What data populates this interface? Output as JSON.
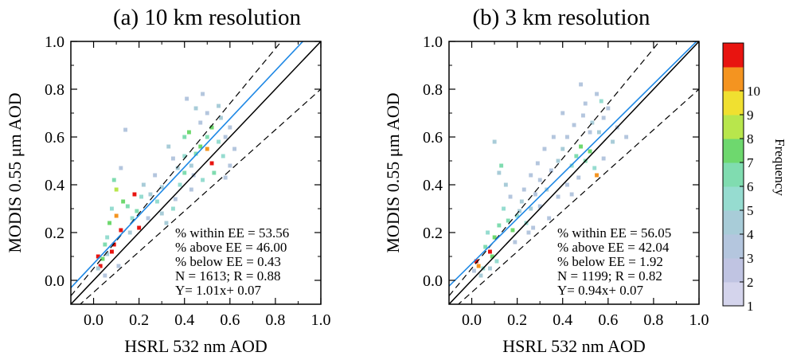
{
  "chart_data": [
    {
      "type": "heatmap",
      "title": "(a) 10 km resolution",
      "xlabel": "HSRL 532 nm AOD",
      "ylabel": "MODIS 0.55 μm AOD",
      "xlim": [
        -0.1,
        1.0
      ],
      "ylim": [
        -0.1,
        1.0
      ],
      "xticks": [
        "0.0",
        "0.2",
        "0.4",
        "0.6",
        "0.8",
        "1.0"
      ],
      "yticks": [
        "0.0",
        "0.2",
        "0.4",
        "0.6",
        "0.8",
        "1.0"
      ],
      "reference_lines": {
        "one_to_one": {
          "slope": 1.0,
          "intercept": 0.0
        },
        "ee_envelope_upper": {
          "slope": 1.15,
          "intercept": 0.05
        },
        "ee_envelope_lower": {
          "slope": 0.85,
          "intercept": -0.05
        },
        "regression": {
          "slope": 1.01,
          "intercept": 0.07
        }
      },
      "stats_lines": [
        "% within EE =  53.56",
        "% above EE =  46.00",
        "% below EE =   0.43",
        "N =   1613; R =  0.88",
        "Y=  1.01x+  0.07"
      ],
      "cells": [
        [
          0.02,
          0.1,
          10
        ],
        [
          0.03,
          0.06,
          10
        ],
        [
          0.08,
          0.12,
          10
        ],
        [
          0.09,
          0.15,
          10
        ],
        [
          0.1,
          0.27,
          9
        ],
        [
          0.12,
          0.21,
          10
        ],
        [
          0.18,
          0.36,
          10
        ],
        [
          0.2,
          0.22,
          10
        ],
        [
          0.52,
          0.49,
          10
        ],
        [
          0.5,
          0.55,
          9
        ],
        [
          0.04,
          0.09,
          6
        ],
        [
          0.05,
          0.15,
          5
        ],
        [
          0.06,
          0.18,
          4
        ],
        [
          0.07,
          0.24,
          6
        ],
        [
          0.08,
          0.3,
          4
        ],
        [
          0.09,
          0.42,
          5
        ],
        [
          0.1,
          0.38,
          7
        ],
        [
          0.13,
          0.33,
          6
        ],
        [
          0.15,
          0.31,
          5
        ],
        [
          0.17,
          0.26,
          4
        ],
        [
          0.19,
          0.29,
          5
        ],
        [
          0.21,
          0.35,
          4
        ],
        [
          0.22,
          0.4,
          3
        ],
        [
          0.25,
          0.36,
          3
        ],
        [
          0.28,
          0.33,
          4
        ],
        [
          0.3,
          0.28,
          3
        ],
        [
          0.32,
          0.24,
          3
        ],
        [
          0.35,
          0.3,
          4
        ],
        [
          0.38,
          0.4,
          4
        ],
        [
          0.4,
          0.45,
          5
        ],
        [
          0.4,
          0.52,
          4
        ],
        [
          0.4,
          0.6,
          5
        ],
        [
          0.42,
          0.62,
          6
        ],
        [
          0.43,
          0.48,
          3
        ],
        [
          0.45,
          0.53,
          5
        ],
        [
          0.47,
          0.56,
          6
        ],
        [
          0.48,
          0.42,
          4
        ],
        [
          0.5,
          0.6,
          5
        ],
        [
          0.52,
          0.64,
          6
        ],
        [
          0.53,
          0.45,
          5
        ],
        [
          0.55,
          0.58,
          4
        ],
        [
          0.56,
          0.68,
          3
        ],
        [
          0.57,
          0.52,
          4
        ],
        [
          0.45,
          0.72,
          3
        ],
        [
          0.48,
          0.78,
          2
        ],
        [
          0.5,
          0.7,
          2
        ],
        [
          0.55,
          0.73,
          3
        ],
        [
          0.58,
          0.6,
          2
        ],
        [
          0.6,
          0.64,
          2
        ],
        [
          0.33,
          0.56,
          3
        ],
        [
          0.35,
          0.51,
          2
        ],
        [
          0.37,
          0.47,
          3
        ],
        [
          0.44,
          0.44,
          2
        ],
        [
          0.6,
          0.48,
          2
        ],
        [
          0.62,
          0.55,
          2
        ],
        [
          0.47,
          0.66,
          2
        ],
        [
          0.41,
          0.76,
          2
        ],
        [
          0.14,
          0.63,
          2
        ],
        [
          0.12,
          0.47,
          2
        ],
        [
          0.05,
          0.02,
          2
        ],
        [
          0.02,
          0.05,
          3
        ],
        [
          0.06,
          0.11,
          3
        ],
        [
          0.11,
          0.06,
          2
        ],
        [
          0.16,
          0.2,
          3
        ],
        [
          0.24,
          0.26,
          2
        ],
        [
          0.27,
          0.44,
          2
        ],
        [
          0.3,
          0.39,
          3
        ],
        [
          0.36,
          0.34,
          2
        ],
        [
          0.43,
          0.38,
          2
        ],
        [
          0.58,
          0.43,
          2
        ]
      ]
    },
    {
      "type": "heatmap",
      "title": "(b) 3 km resolution",
      "xlabel": "HSRL 532 nm AOD",
      "ylabel": "MODIS 0.55 μm AOD",
      "xlim": [
        -0.1,
        1.0
      ],
      "ylim": [
        -0.1,
        1.0
      ],
      "xticks": [
        "0.0",
        "0.2",
        "0.4",
        "0.6",
        "0.8",
        "1.0"
      ],
      "yticks": [
        "0.0",
        "0.2",
        "0.4",
        "0.6",
        "0.8",
        "1.0"
      ],
      "reference_lines": {
        "one_to_one": {
          "slope": 1.0,
          "intercept": 0.0
        },
        "ee_envelope_upper": {
          "slope": 1.15,
          "intercept": 0.05
        },
        "ee_envelope_lower": {
          "slope": 0.85,
          "intercept": -0.05
        },
        "regression": {
          "slope": 0.94,
          "intercept": 0.07
        }
      },
      "stats_lines": [
        "% within EE =  56.05",
        "% above EE =  42.04",
        "% below EE =   1.92",
        "N =   1199; R =  0.82",
        "Y=  0.94x+  0.07"
      ],
      "cells": [
        [
          0.02,
          0.08,
          10
        ],
        [
          0.03,
          0.06,
          9
        ],
        [
          0.08,
          0.12,
          10
        ],
        [
          0.09,
          0.1,
          6
        ],
        [
          0.05,
          0.05,
          4
        ],
        [
          0.06,
          0.14,
          5
        ],
        [
          0.07,
          0.2,
          4
        ],
        [
          0.1,
          0.18,
          6
        ],
        [
          0.12,
          0.23,
          5
        ],
        [
          0.14,
          0.3,
          4
        ],
        [
          0.15,
          0.4,
          3
        ],
        [
          0.16,
          0.25,
          5
        ],
        [
          0.18,
          0.21,
          6
        ],
        [
          0.2,
          0.27,
          4
        ],
        [
          0.22,
          0.33,
          3
        ],
        [
          0.24,
          0.24,
          4
        ],
        [
          0.26,
          0.3,
          3
        ],
        [
          0.28,
          0.36,
          2
        ],
        [
          0.3,
          0.42,
          2
        ],
        [
          0.33,
          0.38,
          3
        ],
        [
          0.35,
          0.46,
          2
        ],
        [
          0.38,
          0.5,
          3
        ],
        [
          0.4,
          0.55,
          3
        ],
        [
          0.42,
          0.6,
          2
        ],
        [
          0.44,
          0.48,
          4
        ],
        [
          0.46,
          0.52,
          5
        ],
        [
          0.48,
          0.56,
          6
        ],
        [
          0.5,
          0.5,
          5
        ],
        [
          0.52,
          0.54,
          6
        ],
        [
          0.54,
          0.47,
          4
        ],
        [
          0.55,
          0.44,
          9
        ],
        [
          0.56,
          0.62,
          3
        ],
        [
          0.58,
          0.68,
          2
        ],
        [
          0.6,
          0.72,
          2
        ],
        [
          0.62,
          0.58,
          3
        ],
        [
          0.45,
          0.65,
          2
        ],
        [
          0.5,
          0.74,
          2
        ],
        [
          0.55,
          0.78,
          2
        ],
        [
          0.48,
          0.82,
          2
        ],
        [
          0.4,
          0.7,
          2
        ],
        [
          0.36,
          0.6,
          2
        ],
        [
          0.32,
          0.55,
          2
        ],
        [
          0.29,
          0.49,
          2
        ],
        [
          0.26,
          0.44,
          2
        ],
        [
          0.23,
          0.38,
          2
        ],
        [
          0.1,
          0.58,
          3
        ],
        [
          0.12,
          0.45,
          3
        ],
        [
          0.13,
          0.48,
          5
        ],
        [
          0.17,
          0.35,
          2
        ],
        [
          0.21,
          0.29,
          3
        ],
        [
          0.25,
          0.2,
          2
        ],
        [
          0.3,
          0.31,
          2
        ],
        [
          0.34,
          0.26,
          2
        ],
        [
          0.38,
          0.35,
          2
        ],
        [
          0.42,
          0.4,
          2
        ],
        [
          0.47,
          0.43,
          2
        ],
        [
          0.52,
          0.62,
          2
        ],
        [
          0.58,
          0.51,
          2
        ],
        [
          0.64,
          0.64,
          2
        ],
        [
          0.68,
          0.6,
          2
        ],
        [
          0.57,
          0.75,
          4
        ],
        [
          0.04,
          0.02,
          3
        ],
        [
          0.01,
          0.04,
          2
        ],
        [
          0.08,
          0.05,
          3
        ],
        [
          0.11,
          0.08,
          4
        ],
        [
          0.19,
          0.16,
          2
        ],
        [
          0.27,
          0.22,
          2
        ],
        [
          0.44,
          0.36,
          2
        ],
        [
          0.53,
          0.66,
          3
        ],
        [
          0.49,
          0.69,
          2
        ]
      ]
    }
  ],
  "colorbar": {
    "label": "Frequency",
    "tick_labels": [
      "1",
      "2",
      "3",
      "4",
      "5",
      "6",
      "7",
      "8",
      "9",
      "10"
    ],
    "colors": [
      "#d4d4ec",
      "#c0c4e2",
      "#b4c6de",
      "#a8ccd8",
      "#96dcd0",
      "#80dcb0",
      "#6ed86e",
      "#b8e64c",
      "#f0e030",
      "#f49420",
      "#e81410"
    ]
  }
}
